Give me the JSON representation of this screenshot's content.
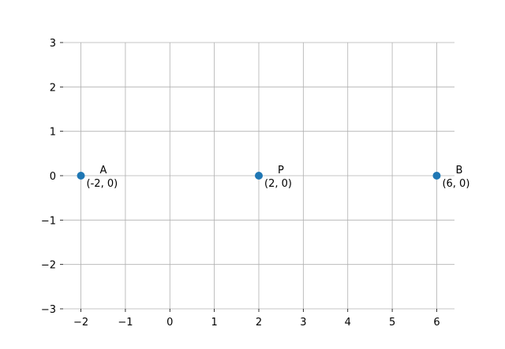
{
  "chart_data": {
    "type": "scatter",
    "title": "",
    "xlabel": "",
    "ylabel": "",
    "xlim": [
      -2.4,
      6.4
    ],
    "ylim": [
      -3,
      3
    ],
    "grid": true,
    "xticks": [
      -2,
      -1,
      0,
      1,
      2,
      3,
      4,
      5,
      6
    ],
    "yticks": [
      -3,
      -2,
      -1,
      0,
      1,
      2,
      3
    ],
    "xtick_labels": [
      "−2",
      "−1",
      "0",
      "1",
      "2",
      "3",
      "4",
      "5",
      "6"
    ],
    "ytick_labels": [
      "−3",
      "−2",
      "−1",
      "0",
      "1",
      "2",
      "3"
    ],
    "points": [
      {
        "name": "A",
        "coord_label": "(-2, 0)",
        "x": -2,
        "y": 0
      },
      {
        "name": "P",
        "coord_label": "(2, 0)",
        "x": 2,
        "y": 0
      },
      {
        "name": "B",
        "coord_label": "(6, 0)",
        "x": 6,
        "y": 0
      }
    ],
    "colors": {
      "point": "#1f77b4",
      "grid": "#b0b0b0"
    }
  }
}
